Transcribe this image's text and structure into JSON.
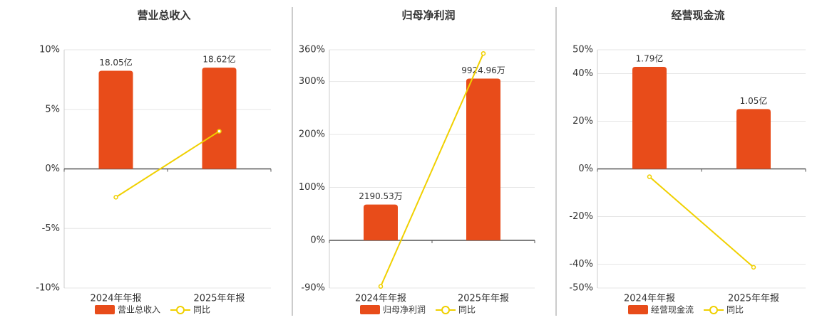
{
  "chart_data": [
    {
      "type": "bar",
      "title": "营业总收入",
      "categories": [
        "2024年年报",
        "2025年年报"
      ],
      "series": [
        {
          "name": "营业总收入",
          "type": "bar",
          "axis": "y2",
          "color": "#e84c1a",
          "values": [
            18.05,
            18.62
          ],
          "value_labels": [
            "18.05亿",
            "18.62亿"
          ]
        },
        {
          "name": "同比",
          "type": "line",
          "axis": "y",
          "color": "#f0d000",
          "values": [
            -2.38,
            3.16
          ]
        }
      ],
      "ylim": [
        -10,
        10
      ],
      "yticks": [
        {
          "value": -10,
          "label": "-10%"
        },
        {
          "value": -5,
          "label": "-5%"
        },
        {
          "value": 0,
          "label": "0%"
        },
        {
          "value": 5,
          "label": "5%"
        },
        {
          "value": 10,
          "label": "10%"
        }
      ],
      "y2lim": [
        -21.9,
        21.9
      ],
      "grid": true
    },
    {
      "type": "bar",
      "title": "归母净利润",
      "categories": [
        "2024年年报",
        "2025年年报"
      ],
      "series": [
        {
          "name": "归母净利润",
          "type": "bar",
          "axis": "y2",
          "color": "#e84c1a",
          "values": [
            2190.53,
            9924.96
          ],
          "value_labels": [
            "2190.53万",
            "9924.96万"
          ]
        },
        {
          "name": "同比",
          "type": "line",
          "axis": "y",
          "color": "#f0d000",
          "values": [
            -87,
            353
          ]
        }
      ],
      "ylim": [
        -90,
        360
      ],
      "yticks": [
        {
          "value": -90,
          "label": "-90%"
        },
        {
          "value": 0,
          "label": "0%"
        },
        {
          "value": 100,
          "label": "100%"
        },
        {
          "value": 200,
          "label": "200%"
        },
        {
          "value": 300,
          "label": "300%"
        },
        {
          "value": 360,
          "label": "360%"
        }
      ],
      "y2lim": [
        -2930,
        11690
      ],
      "grid": true
    },
    {
      "type": "bar",
      "title": "经营现金流",
      "categories": [
        "2024年年报",
        "2025年年报"
      ],
      "series": [
        {
          "name": "经营现金流",
          "type": "bar",
          "axis": "y2",
          "color": "#e84c1a",
          "values": [
            1.79,
            1.05
          ],
          "value_labels": [
            "1.79亿",
            "1.05亿"
          ]
        },
        {
          "name": "同比",
          "type": "line",
          "axis": "y",
          "color": "#f0d000",
          "values": [
            -3.3,
            -41.3
          ]
        }
      ],
      "ylim": [
        -50,
        50
      ],
      "yticks": [
        {
          "value": -50,
          "label": "-50%"
        },
        {
          "value": -40,
          "label": "-40%"
        },
        {
          "value": -20,
          "label": "-20%"
        },
        {
          "value": 0,
          "label": "0%"
        },
        {
          "value": 20,
          "label": "20%"
        },
        {
          "value": 40,
          "label": "40%"
        },
        {
          "value": 50,
          "label": "50%"
        }
      ],
      "y2lim": [
        -2.09,
        2.09
      ],
      "grid": true
    }
  ]
}
